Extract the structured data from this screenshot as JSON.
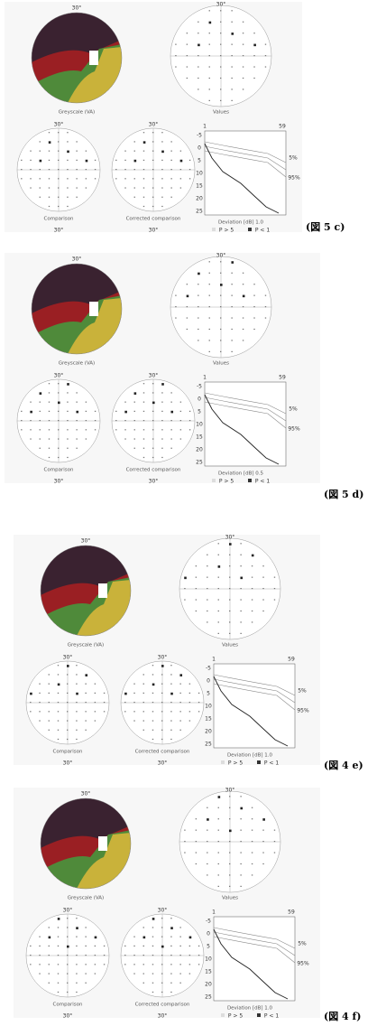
{
  "panels": [
    {
      "caption": "(図 5 c)",
      "top_label": "30°",
      "greyscale_label": "Greyscale (VA)",
      "values_label": "Values",
      "comparison_label": "Comparison",
      "corrected_label": "Corrected comparison",
      "bottom_label": "30°",
      "deviation_label": "Deviation [dB]  1.0",
      "x_ticks": [
        "1",
        "59"
      ],
      "y_ticks": [
        "-5",
        "0",
        "5",
        "10",
        "15",
        "20",
        "25"
      ],
      "band_labels": [
        "5%",
        "95%"
      ],
      "legend": [
        "P > 5",
        "P < 1"
      ]
    },
    {
      "caption": "(図 5 d)",
      "top_label": "30°",
      "greyscale_label": "Greyscale (VA)",
      "values_label": "Values",
      "comparison_label": "Comparison",
      "corrected_label": "Corrected comparison",
      "bottom_label": "30°",
      "deviation_label": "Deviation [dB]  0.5",
      "x_ticks": [
        "1",
        "59"
      ],
      "y_ticks": [
        "-5",
        "0",
        "5",
        "10",
        "15",
        "20",
        "25"
      ],
      "band_labels": [
        "5%",
        "95%"
      ],
      "legend": [
        "P > 5",
        "P < 1"
      ]
    },
    {
      "caption": "(図 4 e)",
      "top_label": "30°",
      "greyscale_label": "Greyscale (VA)",
      "values_label": "Values",
      "comparison_label": "Comparison",
      "corrected_label": "Corrected comparison",
      "bottom_label": "30°",
      "deviation_label": "Deviation [dB]  1.0",
      "x_ticks": [
        "1",
        "59"
      ],
      "y_ticks": [
        "-5",
        "0",
        "5",
        "10",
        "15",
        "20",
        "25"
      ],
      "band_labels": [
        "5%",
        "95%"
      ],
      "legend": [
        "P > 5",
        "P < 1"
      ]
    },
    {
      "caption": "(図 4 f)",
      "top_label": "30°",
      "greyscale_label": "Greyscale (VA)",
      "values_label": "Values",
      "comparison_label": "Comparison",
      "corrected_label": "Corrected comparison",
      "bottom_label": "30°",
      "deviation_label": "Deviation [dB]  1.0",
      "x_ticks": [
        "1",
        "59"
      ],
      "y_ticks": [
        "-5",
        "0",
        "5",
        "10",
        "15",
        "20",
        "25"
      ],
      "band_labels": [
        "5%",
        "95%"
      ],
      "legend": [
        "P > 5",
        "P < 1"
      ]
    }
  ]
}
